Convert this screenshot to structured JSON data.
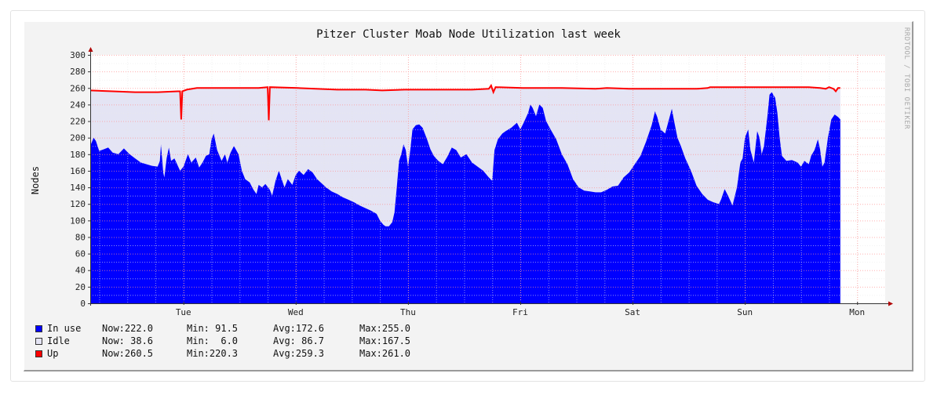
{
  "chart_data": {
    "type": "area",
    "title": "Pitzer Cluster Moab Node Utilization last week",
    "ylabel": "Nodes",
    "watermark": "RRDTOOL / TOBI OETIKER",
    "ylim": [
      0,
      300
    ],
    "yticks": [
      "0",
      "20",
      "40",
      "60",
      "80",
      "100",
      "120",
      "140",
      "160",
      "180",
      "200",
      "220",
      "240",
      "260",
      "280",
      "300"
    ],
    "xrange_days": [
      0,
      7.08
    ],
    "xticks": [
      {
        "day": 0.83,
        "label": "Tue"
      },
      {
        "day": 1.83,
        "label": "Wed"
      },
      {
        "day": 2.83,
        "label": "Thu"
      },
      {
        "day": 3.83,
        "label": "Fri"
      },
      {
        "day": 4.83,
        "label": "Sat"
      },
      {
        "day": 5.83,
        "label": "Sun"
      },
      {
        "day": 6.83,
        "label": "Mon"
      }
    ],
    "colors": {
      "inuse": "#0000ff",
      "idle": "#e4e4f4",
      "up": "#ff0000",
      "grid": "#ffaaaa",
      "axis": "#333333",
      "arrow": "#b00000"
    },
    "series": [
      {
        "name": "In use",
        "color": "#0000ff",
        "points": [
          [
            0.0,
            190
          ],
          [
            0.03,
            200
          ],
          [
            0.05,
            196
          ],
          [
            0.08,
            184
          ],
          [
            0.12,
            186
          ],
          [
            0.16,
            188
          ],
          [
            0.2,
            182
          ],
          [
            0.25,
            180
          ],
          [
            0.3,
            187
          ],
          [
            0.35,
            180
          ],
          [
            0.4,
            175
          ],
          [
            0.45,
            170
          ],
          [
            0.5,
            168
          ],
          [
            0.55,
            166
          ],
          [
            0.6,
            165
          ],
          [
            0.62,
            172
          ],
          [
            0.63,
            192
          ],
          [
            0.65,
            158
          ],
          [
            0.66,
            152
          ],
          [
            0.68,
            175
          ],
          [
            0.7,
            188
          ],
          [
            0.72,
            172
          ],
          [
            0.75,
            175
          ],
          [
            0.8,
            160
          ],
          [
            0.83,
            165
          ],
          [
            0.87,
            180
          ],
          [
            0.9,
            170
          ],
          [
            0.94,
            176
          ],
          [
            0.97,
            164
          ],
          [
            1.0,
            170
          ],
          [
            1.03,
            178
          ],
          [
            1.06,
            180
          ],
          [
            1.08,
            198
          ],
          [
            1.1,
            205
          ],
          [
            1.13,
            185
          ],
          [
            1.17,
            172
          ],
          [
            1.2,
            180
          ],
          [
            1.22,
            170
          ],
          [
            1.25,
            182
          ],
          [
            1.28,
            190
          ],
          [
            1.32,
            180
          ],
          [
            1.35,
            160
          ],
          [
            1.38,
            150
          ],
          [
            1.42,
            146
          ],
          [
            1.45,
            138
          ],
          [
            1.48,
            132
          ],
          [
            1.5,
            143
          ],
          [
            1.53,
            140
          ],
          [
            1.56,
            144
          ],
          [
            1.6,
            137
          ],
          [
            1.62,
            130
          ],
          [
            1.65,
            148
          ],
          [
            1.68,
            160
          ],
          [
            1.7,
            152
          ],
          [
            1.73,
            140
          ],
          [
            1.76,
            150
          ],
          [
            1.8,
            143
          ],
          [
            1.83,
            155
          ],
          [
            1.86,
            160
          ],
          [
            1.9,
            155
          ],
          [
            1.94,
            162
          ],
          [
            1.98,
            158
          ],
          [
            2.02,
            150
          ],
          [
            2.06,
            145
          ],
          [
            2.1,
            140
          ],
          [
            2.15,
            135
          ],
          [
            2.2,
            132
          ],
          [
            2.25,
            128
          ],
          [
            2.3,
            125
          ],
          [
            2.35,
            122
          ],
          [
            2.4,
            118
          ],
          [
            2.45,
            115
          ],
          [
            2.5,
            112
          ],
          [
            2.55,
            108
          ],
          [
            2.58,
            100
          ],
          [
            2.61,
            95
          ],
          [
            2.63,
            93
          ],
          [
            2.66,
            93
          ],
          [
            2.69,
            98
          ],
          [
            2.71,
            110
          ],
          [
            2.73,
            140
          ],
          [
            2.75,
            172
          ],
          [
            2.77,
            180
          ],
          [
            2.79,
            192
          ],
          [
            2.81,
            185
          ],
          [
            2.83,
            165
          ],
          [
            2.85,
            185
          ],
          [
            2.87,
            210
          ],
          [
            2.9,
            215
          ],
          [
            2.93,
            216
          ],
          [
            2.96,
            212
          ],
          [
            3.0,
            198
          ],
          [
            3.03,
            186
          ],
          [
            3.06,
            178
          ],
          [
            3.1,
            172
          ],
          [
            3.14,
            168
          ],
          [
            3.18,
            177
          ],
          [
            3.22,
            188
          ],
          [
            3.26,
            185
          ],
          [
            3.3,
            176
          ],
          [
            3.35,
            180
          ],
          [
            3.4,
            170
          ],
          [
            3.45,
            165
          ],
          [
            3.5,
            160
          ],
          [
            3.55,
            152
          ],
          [
            3.58,
            148
          ],
          [
            3.6,
            185
          ],
          [
            3.63,
            198
          ],
          [
            3.67,
            205
          ],
          [
            3.7,
            208
          ],
          [
            3.75,
            212
          ],
          [
            3.8,
            218
          ],
          [
            3.83,
            210
          ],
          [
            3.86,
            218
          ],
          [
            3.9,
            230
          ],
          [
            3.92,
            240
          ],
          [
            3.94,
            236
          ],
          [
            3.97,
            226
          ],
          [
            4.0,
            240
          ],
          [
            4.03,
            236
          ],
          [
            4.06,
            220
          ],
          [
            4.1,
            210
          ],
          [
            4.15,
            198
          ],
          [
            4.2,
            180
          ],
          [
            4.25,
            168
          ],
          [
            4.3,
            150
          ],
          [
            4.35,
            140
          ],
          [
            4.4,
            136
          ],
          [
            4.45,
            135
          ],
          [
            4.5,
            134
          ],
          [
            4.55,
            134
          ],
          [
            4.6,
            137
          ],
          [
            4.65,
            141
          ],
          [
            4.7,
            142
          ],
          [
            4.75,
            152
          ],
          [
            4.8,
            158
          ],
          [
            4.85,
            168
          ],
          [
            4.9,
            178
          ],
          [
            4.95,
            195
          ],
          [
            5.0,
            215
          ],
          [
            5.03,
            232
          ],
          [
            5.05,
            225
          ],
          [
            5.08,
            210
          ],
          [
            5.12,
            205
          ],
          [
            5.15,
            220
          ],
          [
            5.18,
            235
          ],
          [
            5.2,
            220
          ],
          [
            5.23,
            200
          ],
          [
            5.26,
            190
          ],
          [
            5.3,
            175
          ],
          [
            5.35,
            160
          ],
          [
            5.4,
            142
          ],
          [
            5.45,
            132
          ],
          [
            5.5,
            125
          ],
          [
            5.55,
            122
          ],
          [
            5.6,
            120
          ],
          [
            5.62,
            126
          ],
          [
            5.65,
            138
          ],
          [
            5.68,
            130
          ],
          [
            5.72,
            118
          ],
          [
            5.76,
            140
          ],
          [
            5.79,
            170
          ],
          [
            5.81,
            175
          ],
          [
            5.83,
            200
          ],
          [
            5.86,
            210
          ],
          [
            5.88,
            185
          ],
          [
            5.91,
            170
          ],
          [
            5.94,
            208
          ],
          [
            5.96,
            200
          ],
          [
            5.98,
            180
          ],
          [
            6.0,
            190
          ],
          [
            6.03,
            225
          ],
          [
            6.05,
            252
          ],
          [
            6.07,
            255
          ],
          [
            6.1,
            248
          ],
          [
            6.12,
            230
          ],
          [
            6.14,
            200
          ],
          [
            6.16,
            178
          ],
          [
            6.2,
            172
          ],
          [
            6.25,
            173
          ],
          [
            6.3,
            170
          ],
          [
            6.33,
            165
          ],
          [
            6.36,
            172
          ],
          [
            6.4,
            168
          ],
          [
            6.42,
            178
          ],
          [
            6.45,
            185
          ],
          [
            6.48,
            198
          ],
          [
            6.5,
            186
          ],
          [
            6.52,
            165
          ],
          [
            6.54,
            170
          ],
          [
            6.57,
            200
          ],
          [
            6.6,
            222
          ],
          [
            6.63,
            228
          ],
          [
            6.66,
            225
          ],
          [
            6.68,
            222
          ]
        ]
      },
      {
        "name": "Idle",
        "color": "#e4e4f4"
      },
      {
        "name": "Up",
        "color": "#ff0000",
        "points": [
          [
            0.0,
            257
          ],
          [
            0.2,
            256
          ],
          [
            0.4,
            255
          ],
          [
            0.6,
            255
          ],
          [
            0.78,
            256
          ],
          [
            0.8,
            256
          ],
          [
            0.81,
            222
          ],
          [
            0.82,
            256
          ],
          [
            0.86,
            258
          ],
          [
            0.95,
            260
          ],
          [
            1.2,
            260
          ],
          [
            1.5,
            260
          ],
          [
            1.58,
            261
          ],
          [
            1.59,
            221
          ],
          [
            1.6,
            261
          ],
          [
            1.85,
            260
          ],
          [
            2.2,
            258
          ],
          [
            2.45,
            258
          ],
          [
            2.6,
            257
          ],
          [
            2.8,
            258
          ],
          [
            3.0,
            258
          ],
          [
            3.4,
            258
          ],
          [
            3.55,
            259
          ],
          [
            3.57,
            263
          ],
          [
            3.59,
            255
          ],
          [
            3.61,
            261
          ],
          [
            3.85,
            260
          ],
          [
            4.2,
            260
          ],
          [
            4.5,
            259
          ],
          [
            4.6,
            260
          ],
          [
            4.8,
            259
          ],
          [
            5.0,
            259
          ],
          [
            5.4,
            259
          ],
          [
            5.5,
            260
          ],
          [
            5.52,
            261
          ],
          [
            5.8,
            261
          ],
          [
            6.0,
            261
          ],
          [
            6.4,
            261
          ],
          [
            6.5,
            260
          ],
          [
            6.55,
            259
          ],
          [
            6.58,
            261
          ],
          [
            6.62,
            259
          ],
          [
            6.64,
            256
          ],
          [
            6.66,
            260
          ],
          [
            6.68,
            260
          ]
        ]
      }
    ],
    "legend_placement": "bottom-left"
  },
  "legend": [
    {
      "name": "In use",
      "now": "Now:222.0",
      "min": "Min: 91.5",
      "avg": "Avg:172.6",
      "max": "Max:255.0",
      "color": "#0000ff"
    },
    {
      "name": "Idle",
      "now": "Now: 38.6",
      "min": "Min:  6.0",
      "avg": "Avg: 86.7",
      "max": "Max:167.5",
      "color": "#e4e4f4"
    },
    {
      "name": "Up",
      "now": "Now:260.5",
      "min": "Min:220.3",
      "avg": "Avg:259.3",
      "max": "Max:261.0",
      "color": "#ff0000"
    }
  ]
}
